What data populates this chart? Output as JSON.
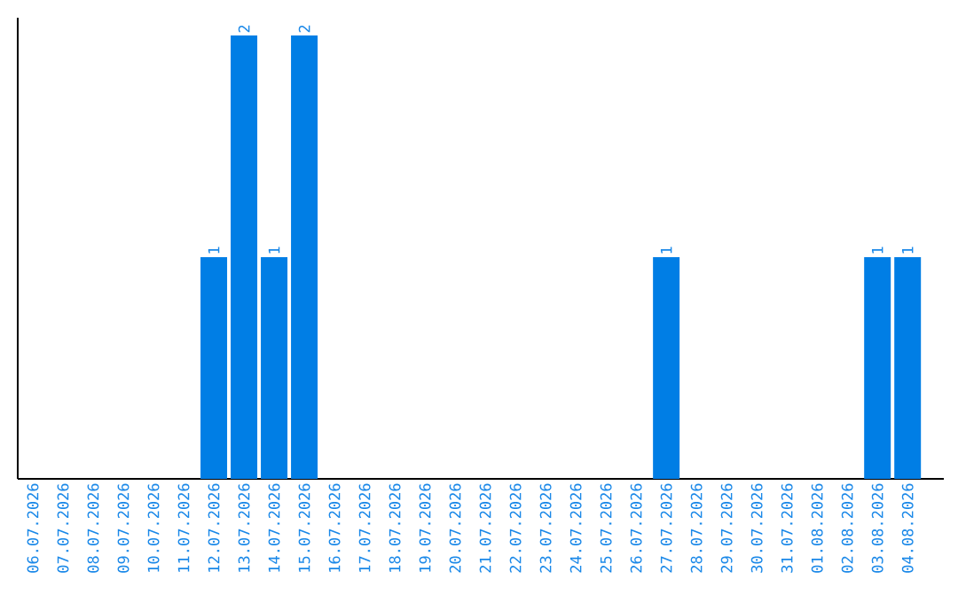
{
  "chart_data": {
    "type": "bar",
    "categories": [
      "06.07.2026",
      "07.07.2026",
      "08.07.2026",
      "09.07.2026",
      "10.07.2026",
      "11.07.2026",
      "12.07.2026",
      "13.07.2026",
      "14.07.2026",
      "15.07.2026",
      "16.07.2026",
      "17.07.2026",
      "18.07.2026",
      "19.07.2026",
      "20.07.2026",
      "21.07.2026",
      "22.07.2026",
      "23.07.2026",
      "24.07.2026",
      "25.07.2026",
      "26.07.2026",
      "27.07.2026",
      "28.07.2026",
      "29.07.2026",
      "30.07.2026",
      "31.07.2026",
      "01.08.2026",
      "02.08.2026",
      "03.08.2026",
      "04.08.2026"
    ],
    "values": [
      0,
      0,
      0,
      0,
      0,
      0,
      1,
      2,
      1,
      2,
      0,
      0,
      0,
      0,
      0,
      0,
      0,
      0,
      0,
      0,
      0,
      1,
      0,
      0,
      0,
      0,
      0,
      0,
      1,
      1
    ],
    "value_labels": [
      null,
      null,
      null,
      null,
      null,
      null,
      "1",
      "2",
      "1",
      "2",
      null,
      null,
      null,
      null,
      null,
      null,
      null,
      null,
      null,
      null,
      null,
      "1",
      null,
      null,
      null,
      null,
      null,
      null,
      "1",
      "1"
    ],
    "color": "#007ee5",
    "ylim": [
      0,
      2.08
    ],
    "tick_labels": "x",
    "grid": false
  }
}
